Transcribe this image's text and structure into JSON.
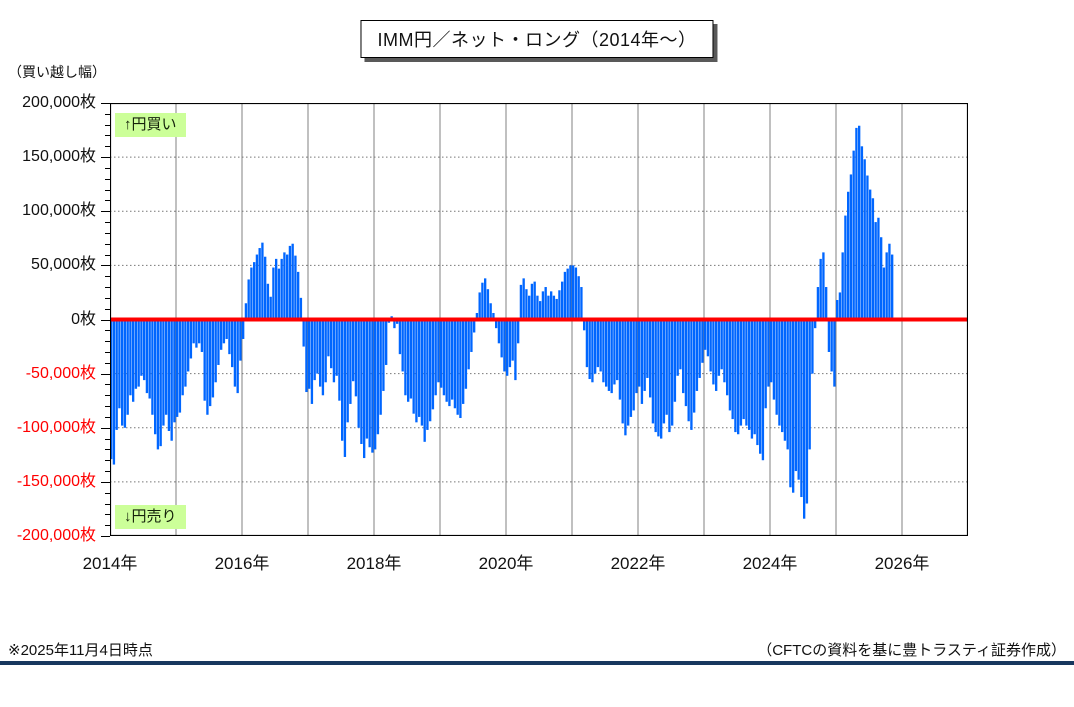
{
  "chart_data": {
    "type": "bar",
    "title": "IMM円／ネット・ロング（2014年～）",
    "y_axis": {
      "unit_label": "（買い越し幅）",
      "min": -200000,
      "max": 200000,
      "major_step": 50000,
      "minor_step": 10000,
      "tick_labels": [
        {
          "text": "200,000枚",
          "value": 200000,
          "negative": false
        },
        {
          "text": "150,000枚",
          "value": 150000,
          "negative": false
        },
        {
          "text": "100,000枚",
          "value": 100000,
          "negative": false
        },
        {
          "text": "50,000枚",
          "value": 50000,
          "negative": false
        },
        {
          "text": "0枚",
          "value": 0,
          "negative": false
        },
        {
          "text": "-50,000枚",
          "value": -50000,
          "negative": true
        },
        {
          "text": "-100,000枚",
          "value": -100000,
          "negative": true
        },
        {
          "text": "-150,000枚",
          "value": -150000,
          "negative": true
        },
        {
          "text": "-200,000枚",
          "value": -200000,
          "negative": true
        }
      ],
      "gridlines_dotted": [
        150000,
        100000,
        50000,
        -50000,
        -100000,
        -150000
      ]
    },
    "x_axis": {
      "domain_start_year": 2014,
      "domain_end_year": 2027,
      "year_gridlines": [
        2015,
        2016,
        2017,
        2018,
        2019,
        2020,
        2021,
        2022,
        2023,
        2024,
        2025,
        2026
      ],
      "tick_labels": [
        {
          "text": "2014年",
          "year": 2014
        },
        {
          "text": "2016年",
          "year": 2016
        },
        {
          "text": "2018年",
          "year": 2018
        },
        {
          "text": "2020年",
          "year": 2020
        },
        {
          "text": "2022年",
          "year": 2022
        },
        {
          "text": "2024年",
          "year": 2024
        },
        {
          "text": "2026年",
          "year": 2026
        }
      ]
    },
    "annotations": {
      "buy": "↑円買い",
      "sell": "↓円売り"
    },
    "zero_line_value": 0,
    "series_name": "IMM円 ネット・ロング（買い越し幅）",
    "values_unit": "枚（contracts）、数値は千枚単位",
    "sampling": "approx. semi-monthly (2 points per month), read from weekly bar chart",
    "x_start_year": 2014.0,
    "x_step_years": 0.0416667,
    "values_by_year": {
      "2014": [
        -129,
        -134,
        -102,
        -82,
        -98,
        -100,
        -88,
        -70,
        -76,
        -64,
        -62,
        -52,
        -56,
        -68,
        -73,
        -88,
        -106,
        -120,
        -117,
        -98,
        -88,
        -103,
        -112,
        -95
      ],
      "2015": [
        -90,
        -86,
        -70,
        -62,
        -48,
        -36,
        -22,
        -26,
        -22,
        -30,
        -75,
        -88,
        -80,
        -72,
        -58,
        -42,
        -28,
        -22,
        -18,
        -32,
        -44,
        -62,
        -68,
        -38
      ],
      "2016": [
        -18,
        15,
        37,
        48,
        53,
        60,
        66,
        71,
        58,
        33,
        21,
        48,
        56,
        47,
        56,
        62,
        60,
        68,
        70,
        59,
        44,
        20,
        -25,
        -67
      ],
      "2017": [
        -64,
        -78,
        -56,
        -50,
        -62,
        -70,
        -58,
        -34,
        -45,
        -58,
        -52,
        -75,
        -112,
        -127,
        -95,
        -78,
        -57,
        -71,
        -100,
        -115,
        -128,
        -110,
        -118,
        -123
      ],
      "2018": [
        -120,
        -106,
        -88,
        -66,
        -42,
        -3,
        3,
        -8,
        -4,
        -32,
        -48,
        -70,
        -76,
        -73,
        -87,
        -95,
        -90,
        -98,
        -113,
        -102,
        -94,
        -83,
        -70,
        -58
      ],
      "2019": [
        -63,
        -70,
        -76,
        -80,
        -74,
        -82,
        -88,
        -91,
        -78,
        -64,
        -46,
        -30,
        -12,
        6,
        25,
        34,
        38,
        28,
        15,
        6,
        -8,
        -22,
        -35,
        -48
      ],
      "2020": [
        -52,
        -44,
        -38,
        -56,
        -22,
        32,
        38,
        28,
        22,
        33,
        35,
        22,
        17,
        26,
        30,
        22,
        26,
        22,
        19,
        27,
        35,
        44,
        47,
        50
      ],
      "2021": [
        50,
        48,
        40,
        30,
        -10,
        -44,
        -55,
        -58,
        -50,
        -44,
        -48,
        -58,
        -62,
        -66,
        -68,
        -60,
        -56,
        -74,
        -96,
        -107,
        -98,
        -90,
        -84,
        -68
      ],
      "2022": [
        -62,
        -78,
        -66,
        -54,
        -72,
        -96,
        -104,
        -108,
        -110,
        -96,
        -88,
        -104,
        -98,
        -76,
        -52,
        -46,
        -68,
        -80,
        -94,
        -102,
        -86,
        -66,
        -54,
        -40
      ],
      "2023": [
        -28,
        -34,
        -48,
        -60,
        -66,
        -52,
        -46,
        -58,
        -70,
        -84,
        -92,
        -104,
        -106,
        -98,
        -92,
        -98,
        -102,
        -110,
        -106,
        -116,
        -124,
        -130,
        -82,
        -62
      ],
      "2024": [
        -58,
        -74,
        -88,
        -98,
        -104,
        -112,
        -120,
        -155,
        -160,
        -140,
        -148,
        -164,
        -184,
        -170,
        -120,
        -50,
        -8,
        30,
        56,
        62,
        30,
        -30,
        -48,
        -62
      ],
      "2025": [
        18,
        25,
        62,
        96,
        118,
        134,
        156,
        177,
        179,
        160,
        148,
        133,
        120,
        112,
        90,
        94,
        76,
        48,
        62,
        70,
        60
      ]
    }
  },
  "footnotes": {
    "left": "※2025年11月4日時点",
    "right": "（CFTCの資料を基に豊トラスティ証券作成）"
  },
  "colors": {
    "bar_blue": "#0066ff",
    "zero_line_red": "#ff0000",
    "negative_label_red": "#ff0000",
    "annotation_bg": "#ccff99",
    "year_gridline": "#808080",
    "dotted_gridline": "#777777",
    "plot_border": "#000000",
    "divider_navy": "#17375e"
  }
}
